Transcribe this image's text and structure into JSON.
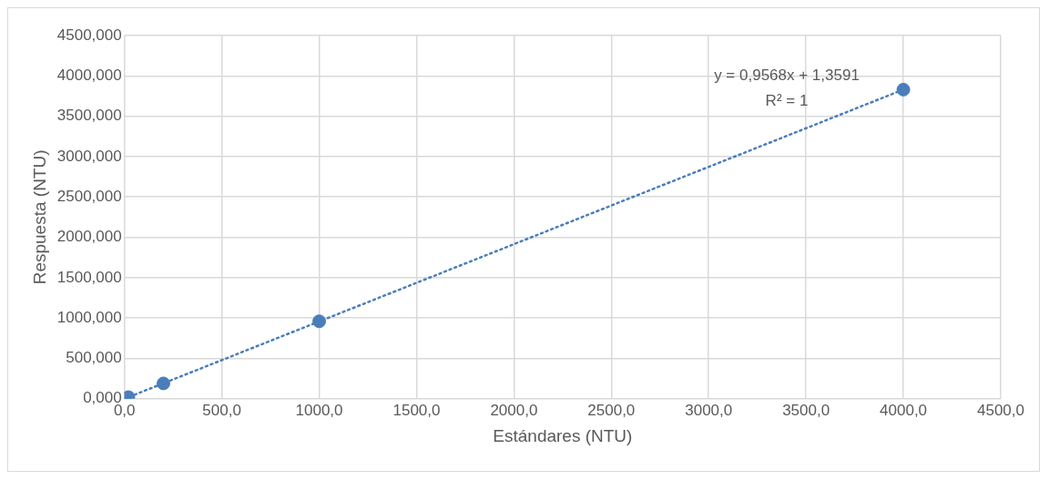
{
  "chart_data": {
    "type": "scatter",
    "xlabel": "Estándares (NTU)",
    "ylabel": "Respuesta (NTU)",
    "x": [
      0,
      20,
      200,
      1000,
      4000
    ],
    "series": [
      {
        "type": "scatter",
        "color": "#4a7ebb",
        "values": [
          0,
          20,
          190,
          960,
          3830
        ],
        "marker": "circle"
      },
      {
        "type": "line",
        "color": "#4a7ebb",
        "x": [
          0,
          4000
        ],
        "values": [
          0,
          3830
        ],
        "line_style": "dotted",
        "marker": "none"
      }
    ],
    "xlim": [
      0,
      4500
    ],
    "ylim": [
      0,
      4500
    ],
    "xticks": [
      {
        "value": 0,
        "label": "0,0"
      },
      {
        "value": 500,
        "label": "500,0"
      },
      {
        "value": 1000,
        "label": "1000,0"
      },
      {
        "value": 1500,
        "label": "1500,0"
      },
      {
        "value": 2000,
        "label": "2000,0"
      },
      {
        "value": 2500,
        "label": "2500,0"
      },
      {
        "value": 3000,
        "label": "3000,0"
      },
      {
        "value": 3500,
        "label": "3500,0"
      },
      {
        "value": 4000,
        "label": "4000,0"
      },
      {
        "value": 4500,
        "label": "4500,0"
      }
    ],
    "yticks": [
      {
        "value": 0,
        "label": "0,000"
      },
      {
        "value": 500,
        "label": "500,000"
      },
      {
        "value": 1000,
        "label": "1000,000"
      },
      {
        "value": 1500,
        "label": "1500,000"
      },
      {
        "value": 2000,
        "label": "2000,000"
      },
      {
        "value": 2500,
        "label": "2500,000"
      },
      {
        "value": 3000,
        "label": "3000,000"
      },
      {
        "value": 3500,
        "label": "3500,000"
      },
      {
        "value": 4000,
        "label": "4000,000"
      },
      {
        "value": 4500,
        "label": "4500,000"
      }
    ],
    "annotations": [
      "y = 0,9568x + 1,3591",
      "R² = 1"
    ],
    "grid": true,
    "legend": false
  }
}
